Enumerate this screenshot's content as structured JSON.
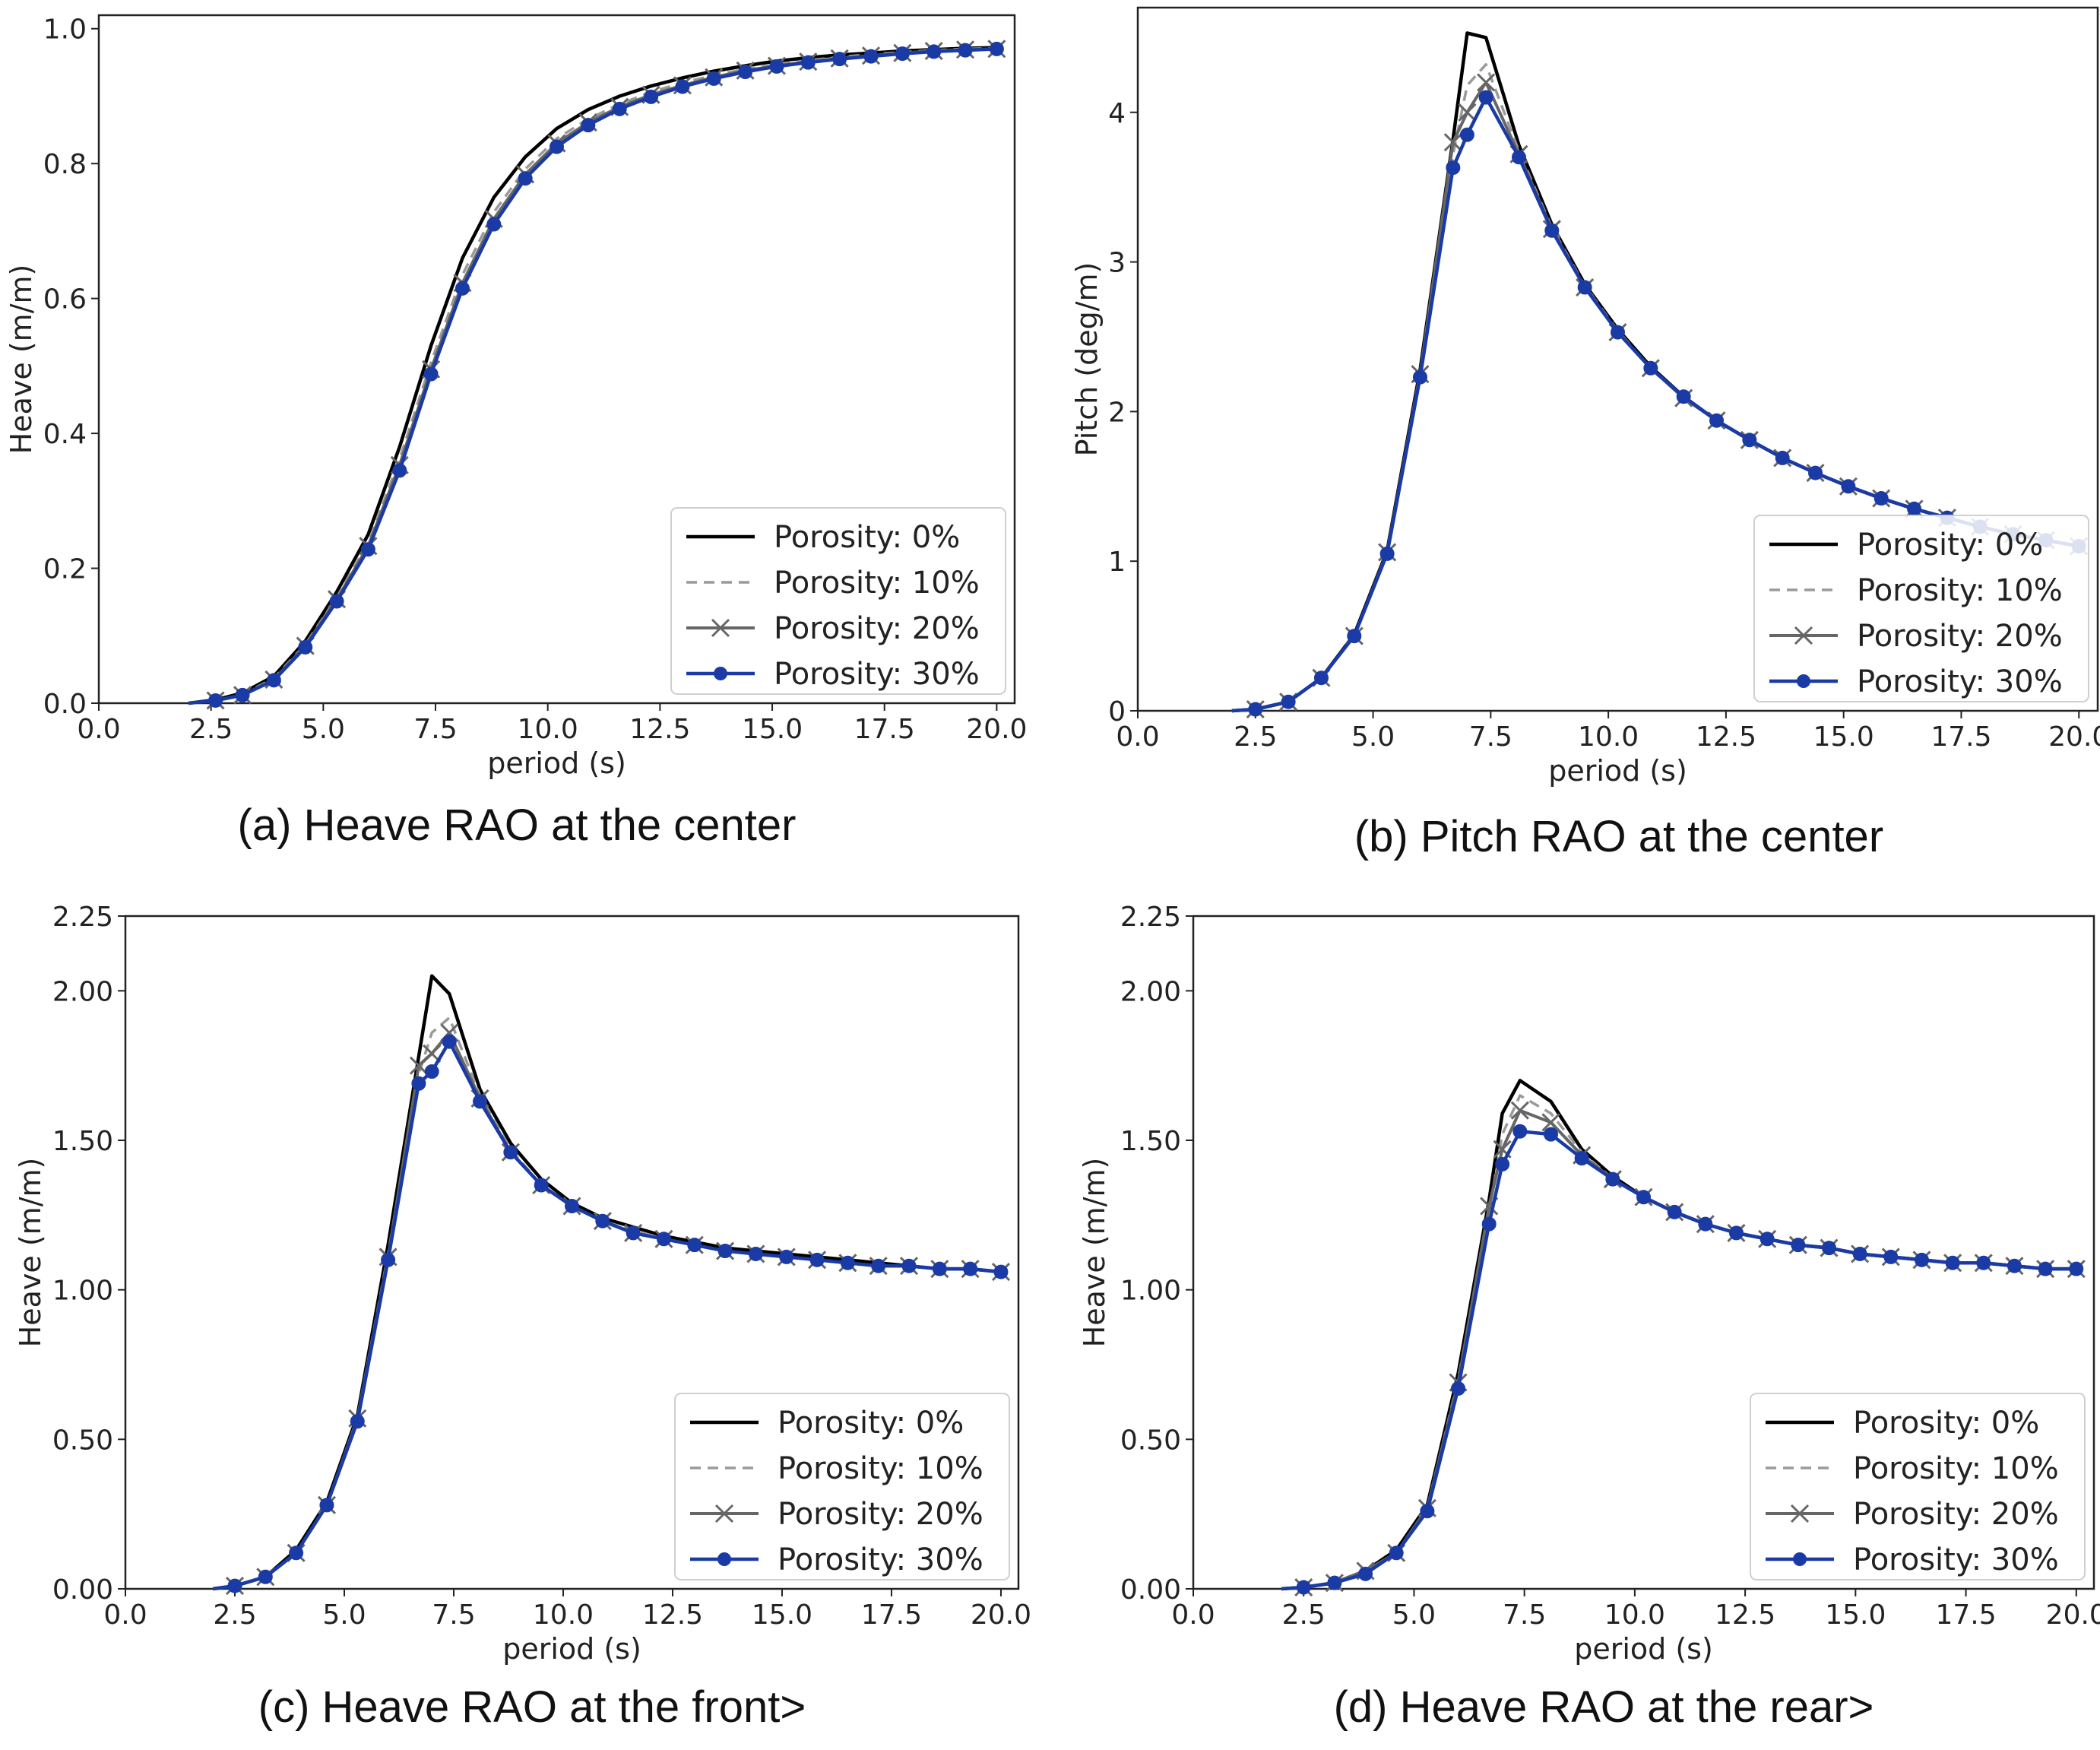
{
  "colors": {
    "porosity_0": "#000000",
    "porosity_10": "#9a9a9a",
    "porosity_20": "#666666",
    "porosity_30": "#1a3aa6"
  },
  "chart_data": [
    {
      "type": "line",
      "caption": "(a) Heave RAO at the center",
      "xlabel": "period (s)",
      "ylabel": "Heave (m/m)",
      "xlim": [
        0,
        20.4
      ],
      "ylim": [
        0,
        1.02
      ],
      "xticks": [
        0,
        2.5,
        5,
        7.5,
        10,
        12.5,
        15,
        17.5,
        20
      ],
      "xtick_labels": [
        "0.0",
        "2.5",
        "5.0",
        "7.5",
        "10.0",
        "12.5",
        "15.0",
        "17.5",
        "20.0"
      ],
      "yticks": [
        0,
        0.2,
        0.4,
        0.6,
        0.8,
        1.0
      ],
      "ytick_labels": [
        "0.0",
        "0.2",
        "0.4",
        "0.6",
        "0.8",
        "1.0"
      ],
      "legend_position": "bottom-right",
      "x": [
        2.0,
        2.6,
        3.2,
        3.9,
        4.6,
        5.3,
        6.0,
        6.7,
        7.4,
        8.1,
        8.8,
        9.5,
        10.2,
        10.9,
        11.6,
        12.3,
        13.0,
        13.7,
        14.4,
        15.1,
        15.8,
        16.5,
        17.2,
        17.9,
        18.6,
        19.3,
        20.0
      ],
      "series": [
        {
          "name": "Porosity: 0%",
          "style": "solid",
          "marker": "none",
          "values": [
            0.0,
            0.005,
            0.015,
            0.04,
            0.092,
            0.165,
            0.25,
            0.38,
            0.53,
            0.66,
            0.75,
            0.81,
            0.852,
            0.88,
            0.9,
            0.915,
            0.927,
            0.937,
            0.945,
            0.952,
            0.957,
            0.961,
            0.964,
            0.967,
            0.969,
            0.971,
            0.972
          ]
        },
        {
          "name": "Porosity: 10%",
          "style": "dashed",
          "marker": "none",
          "values": [
            0.0,
            0.004,
            0.013,
            0.037,
            0.087,
            0.157,
            0.238,
            0.362,
            0.505,
            0.635,
            0.728,
            0.792,
            0.837,
            0.866,
            0.888,
            0.906,
            0.92,
            0.931,
            0.94,
            0.947,
            0.953,
            0.958,
            0.962,
            0.965,
            0.968,
            0.97,
            0.971
          ]
        },
        {
          "name": "Porosity: 20%",
          "style": "solid",
          "marker": "x",
          "values": [
            0.0,
            0.004,
            0.012,
            0.035,
            0.085,
            0.154,
            0.233,
            0.353,
            0.495,
            0.623,
            0.718,
            0.784,
            0.83,
            0.861,
            0.884,
            0.902,
            0.916,
            0.928,
            0.938,
            0.945,
            0.951,
            0.956,
            0.96,
            0.964,
            0.967,
            0.969,
            0.97
          ]
        },
        {
          "name": "Porosity: 30%",
          "style": "solid",
          "marker": "circle",
          "values": [
            0.0,
            0.004,
            0.012,
            0.034,
            0.083,
            0.151,
            0.228,
            0.345,
            0.488,
            0.615,
            0.71,
            0.778,
            0.825,
            0.857,
            0.881,
            0.899,
            0.914,
            0.926,
            0.936,
            0.944,
            0.95,
            0.955,
            0.959,
            0.963,
            0.966,
            0.968,
            0.97
          ]
        }
      ]
    },
    {
      "type": "line",
      "caption": "(b) Pitch RAO at the center",
      "xlabel": "period (s)",
      "ylabel": "Pitch (deg/m)",
      "xlim": [
        0,
        20.4
      ],
      "ylim": [
        0,
        4.7
      ],
      "xticks": [
        0,
        2.5,
        5,
        7.5,
        10,
        12.5,
        15,
        17.5,
        20
      ],
      "xtick_labels": [
        "0.0",
        "2.5",
        "5.0",
        "7.5",
        "10.0",
        "12.5",
        "15.0",
        "17.5",
        "20.0"
      ],
      "yticks": [
        0,
        1,
        2,
        3,
        4
      ],
      "ytick_labels": [
        "0",
        "1",
        "2",
        "3",
        "4"
      ],
      "legend_position": "bottom-right",
      "x": [
        2.0,
        2.5,
        3.2,
        3.9,
        4.6,
        5.3,
        6.0,
        6.7,
        7.0,
        7.4,
        8.1,
        8.8,
        9.5,
        10.2,
        10.9,
        11.6,
        12.3,
        13.0,
        13.7,
        14.4,
        15.1,
        15.8,
        16.5,
        17.2,
        17.9,
        18.6,
        19.3,
        20.0
      ],
      "series": [
        {
          "name": "Porosity: 0%",
          "style": "solid",
          "marker": "none",
          "values": [
            0.0,
            0.01,
            0.06,
            0.22,
            0.51,
            1.07,
            2.28,
            3.82,
            4.53,
            4.5,
            3.78,
            3.25,
            2.85,
            2.55,
            2.3,
            2.1,
            1.94,
            1.81,
            1.69,
            1.59,
            1.5,
            1.42,
            1.35,
            1.29,
            1.23,
            1.18,
            1.14,
            1.1
          ]
        },
        {
          "name": "Porosity: 10%",
          "style": "dashed",
          "marker": "none",
          "values": [
            0.0,
            0.01,
            0.06,
            0.22,
            0.5,
            1.06,
            2.26,
            3.72,
            4.18,
            4.32,
            3.74,
            3.23,
            2.84,
            2.54,
            2.29,
            2.1,
            1.94,
            1.81,
            1.69,
            1.59,
            1.5,
            1.42,
            1.35,
            1.29,
            1.23,
            1.18,
            1.14,
            1.1
          ]
        },
        {
          "name": "Porosity: 20%",
          "style": "solid",
          "marker": "x",
          "values": [
            0.0,
            0.01,
            0.06,
            0.22,
            0.5,
            1.06,
            2.25,
            3.8,
            4.0,
            4.2,
            3.72,
            3.22,
            2.83,
            2.53,
            2.29,
            2.09,
            1.94,
            1.81,
            1.69,
            1.59,
            1.5,
            1.42,
            1.35,
            1.29,
            1.23,
            1.18,
            1.14,
            1.1
          ]
        },
        {
          "name": "Porosity: 30%",
          "style": "solid",
          "marker": "circle",
          "values": [
            0.0,
            0.01,
            0.06,
            0.22,
            0.5,
            1.05,
            2.23,
            3.63,
            3.85,
            4.1,
            3.7,
            3.21,
            2.83,
            2.53,
            2.29,
            2.1,
            1.94,
            1.81,
            1.69,
            1.59,
            1.5,
            1.42,
            1.35,
            1.29,
            1.23,
            1.18,
            1.14,
            1.1
          ]
        }
      ]
    },
    {
      "type": "line",
      "caption": "(c)  Heave  RAO  at  the  front>",
      "xlabel": "period (s)",
      "ylabel": "Heave (m/m)",
      "xlim": [
        0,
        20.4
      ],
      "ylim": [
        0,
        2.25
      ],
      "xticks": [
        0,
        2.5,
        5,
        7.5,
        10,
        12.5,
        15,
        17.5,
        20
      ],
      "xtick_labels": [
        "0.0",
        "2.5",
        "5.0",
        "7.5",
        "10.0",
        "12.5",
        "15.0",
        "17.5",
        "20.0"
      ],
      "yticks": [
        0,
        0.5,
        1.0,
        1.5,
        2.0,
        2.25
      ],
      "ytick_labels": [
        "0.00",
        "0.50",
        "1.00",
        "1.50",
        "2.00",
        "2.25"
      ],
      "legend_position": "bottom-right",
      "x": [
        2.0,
        2.5,
        3.2,
        3.9,
        4.6,
        5.3,
        6.0,
        6.7,
        7.0,
        7.4,
        8.1,
        8.8,
        9.5,
        10.2,
        10.9,
        11.6,
        12.3,
        13.0,
        13.7,
        14.4,
        15.1,
        15.8,
        16.5,
        17.2,
        17.9,
        18.6,
        19.3,
        20.0
      ],
      "series": [
        {
          "name": "Porosity: 0%",
          "style": "solid",
          "marker": "none",
          "values": [
            0.0,
            0.01,
            0.04,
            0.13,
            0.29,
            0.58,
            1.15,
            1.78,
            2.05,
            1.99,
            1.67,
            1.49,
            1.37,
            1.29,
            1.24,
            1.21,
            1.18,
            1.16,
            1.14,
            1.13,
            1.12,
            1.11,
            1.1,
            1.09,
            1.08,
            1.07,
            1.07,
            1.06
          ]
        },
        {
          "name": "Porosity: 10%",
          "style": "dashed",
          "marker": "none",
          "values": [
            0.0,
            0.01,
            0.04,
            0.12,
            0.28,
            0.57,
            1.12,
            1.72,
            1.86,
            1.91,
            1.65,
            1.47,
            1.35,
            1.28,
            1.23,
            1.2,
            1.17,
            1.15,
            1.13,
            1.12,
            1.11,
            1.1,
            1.09,
            1.08,
            1.08,
            1.07,
            1.07,
            1.06
          ]
        },
        {
          "name": "Porosity: 20%",
          "style": "solid",
          "marker": "x",
          "values": [
            0.0,
            0.01,
            0.04,
            0.12,
            0.28,
            0.57,
            1.11,
            1.75,
            1.79,
            1.86,
            1.64,
            1.46,
            1.35,
            1.28,
            1.23,
            1.19,
            1.17,
            1.15,
            1.13,
            1.12,
            1.11,
            1.1,
            1.09,
            1.08,
            1.08,
            1.07,
            1.07,
            1.06
          ]
        },
        {
          "name": "Porosity: 30%",
          "style": "solid",
          "marker": "circle",
          "values": [
            0.0,
            0.01,
            0.04,
            0.12,
            0.28,
            0.56,
            1.1,
            1.69,
            1.73,
            1.83,
            1.63,
            1.46,
            1.35,
            1.28,
            1.23,
            1.19,
            1.17,
            1.15,
            1.13,
            1.12,
            1.11,
            1.1,
            1.09,
            1.08,
            1.08,
            1.07,
            1.07,
            1.06
          ]
        }
      ]
    },
    {
      "type": "line",
      "caption": "(d)  Heave  RAO  at  the  rear>",
      "xlabel": "period (s)",
      "ylabel": "Heave (m/m)",
      "xlim": [
        0,
        20.4
      ],
      "ylim": [
        0,
        2.25
      ],
      "xticks": [
        0,
        2.5,
        5,
        7.5,
        10,
        12.5,
        15,
        17.5,
        20
      ],
      "xtick_labels": [
        "0.0",
        "2.5",
        "5.0",
        "7.5",
        "10.0",
        "12.5",
        "15.0",
        "17.5",
        "20.0"
      ],
      "yticks": [
        0,
        0.5,
        1.0,
        1.5,
        2.0,
        2.25
      ],
      "ytick_labels": [
        "0.00",
        "0.50",
        "1.00",
        "1.50",
        "2.00",
        "2.25"
      ],
      "legend_position": "bottom-right",
      "x": [
        2.0,
        2.5,
        3.2,
        3.9,
        4.6,
        5.3,
        6.0,
        6.7,
        7.0,
        7.4,
        8.1,
        8.8,
        9.5,
        10.2,
        10.9,
        11.6,
        12.3,
        13.0,
        13.7,
        14.4,
        15.1,
        15.8,
        16.5,
        17.2,
        17.9,
        18.6,
        19.3,
        20.0
      ],
      "series": [
        {
          "name": "Porosity: 0%",
          "style": "solid",
          "marker": "none",
          "values": [
            0.0,
            0.005,
            0.02,
            0.06,
            0.13,
            0.28,
            0.72,
            1.3,
            1.59,
            1.7,
            1.63,
            1.47,
            1.38,
            1.31,
            1.26,
            1.22,
            1.19,
            1.17,
            1.15,
            1.14,
            1.12,
            1.11,
            1.1,
            1.09,
            1.09,
            1.08,
            1.07,
            1.07
          ]
        },
        {
          "name": "Porosity: 10%",
          "style": "dashed",
          "marker": "none",
          "values": [
            0.0,
            0.005,
            0.02,
            0.06,
            0.12,
            0.27,
            0.7,
            1.26,
            1.52,
            1.65,
            1.59,
            1.46,
            1.37,
            1.31,
            1.26,
            1.22,
            1.19,
            1.17,
            1.15,
            1.14,
            1.12,
            1.11,
            1.1,
            1.09,
            1.09,
            1.08,
            1.07,
            1.07
          ]
        },
        {
          "name": "Porosity: 20%",
          "style": "solid",
          "marker": "x",
          "values": [
            0.0,
            0.005,
            0.02,
            0.06,
            0.12,
            0.27,
            0.69,
            1.28,
            1.47,
            1.6,
            1.56,
            1.45,
            1.37,
            1.31,
            1.26,
            1.22,
            1.19,
            1.17,
            1.15,
            1.14,
            1.12,
            1.11,
            1.1,
            1.09,
            1.09,
            1.08,
            1.07,
            1.07
          ]
        },
        {
          "name": "Porosity: 30%",
          "style": "solid",
          "marker": "circle",
          "values": [
            0.0,
            0.005,
            0.02,
            0.05,
            0.12,
            0.26,
            0.67,
            1.22,
            1.42,
            1.53,
            1.52,
            1.44,
            1.37,
            1.31,
            1.26,
            1.22,
            1.19,
            1.17,
            1.15,
            1.14,
            1.12,
            1.11,
            1.1,
            1.09,
            1.09,
            1.08,
            1.07,
            1.07
          ]
        }
      ]
    }
  ]
}
